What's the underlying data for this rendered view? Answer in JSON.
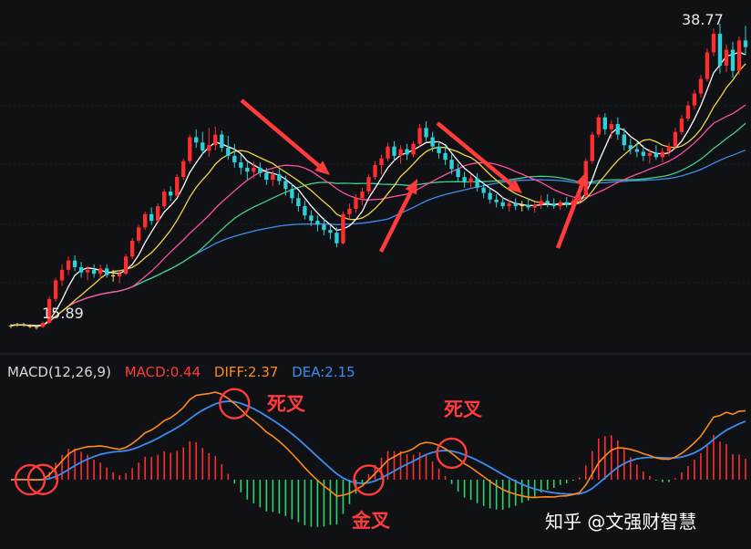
{
  "chart_data": {
    "type": "candlestick+macd",
    "price_high_label": "38.77",
    "price_low_label": "15.89",
    "candles": [
      [
        16.0,
        16.1,
        15.8,
        16.0
      ],
      [
        16.0,
        16.2,
        15.9,
        16.1
      ],
      [
        16.1,
        16.2,
        15.9,
        16.0
      ],
      [
        16.0,
        16.1,
        15.8,
        15.9
      ],
      [
        15.9,
        16.0,
        15.7,
        15.9
      ],
      [
        15.9,
        16.3,
        15.8,
        16.2
      ],
      [
        16.2,
        18.2,
        16.1,
        18.0
      ],
      [
        18.0,
        19.6,
        17.8,
        19.4
      ],
      [
        19.4,
        20.6,
        19.0,
        20.2
      ],
      [
        20.2,
        21.2,
        19.8,
        20.9
      ],
      [
        20.9,
        21.3,
        20.1,
        20.4
      ],
      [
        20.4,
        20.8,
        19.6,
        20.0
      ],
      [
        20.0,
        20.5,
        19.4,
        20.2
      ],
      [
        20.2,
        20.6,
        19.6,
        19.9
      ],
      [
        19.9,
        20.6,
        19.5,
        20.3
      ],
      [
        20.3,
        20.6,
        19.6,
        19.8
      ],
      [
        19.8,
        20.2,
        19.3,
        19.7
      ],
      [
        19.7,
        20.1,
        19.2,
        19.9
      ],
      [
        19.9,
        21.4,
        19.8,
        21.2
      ],
      [
        21.2,
        22.6,
        21.0,
        22.4
      ],
      [
        22.4,
        23.6,
        22.2,
        23.4
      ],
      [
        23.4,
        24.6,
        23.2,
        24.4
      ],
      [
        24.4,
        24.9,
        23.6,
        23.9
      ],
      [
        23.9,
        25.2,
        23.8,
        25.0
      ],
      [
        25.0,
        26.3,
        24.8,
        26.1
      ],
      [
        26.1,
        26.5,
        25.4,
        25.8
      ],
      [
        25.8,
        27.4,
        25.7,
        27.2
      ],
      [
        27.2,
        28.6,
        27.0,
        28.4
      ],
      [
        28.4,
        30.4,
        28.2,
        30.2
      ],
      [
        30.2,
        30.8,
        29.4,
        29.8
      ],
      [
        29.8,
        30.6,
        28.9,
        29.2
      ],
      [
        29.2,
        30.9,
        28.7,
        29.6
      ],
      [
        29.6,
        31.0,
        29.2,
        30.4
      ],
      [
        30.4,
        30.7,
        29.1,
        29.4
      ],
      [
        29.4,
        30.3,
        28.5,
        28.8
      ],
      [
        28.8,
        29.7,
        27.9,
        28.3
      ],
      [
        28.3,
        28.9,
        27.4,
        27.9
      ],
      [
        27.9,
        28.3,
        27.0,
        27.6
      ],
      [
        27.6,
        28.4,
        27.1,
        27.9
      ],
      [
        27.9,
        28.3,
        27.2,
        27.5
      ],
      [
        27.5,
        27.9,
        26.6,
        27.0
      ],
      [
        27.0,
        27.7,
        26.5,
        27.4
      ],
      [
        27.4,
        27.8,
        26.6,
        26.9
      ],
      [
        26.9,
        27.3,
        25.8,
        26.3
      ],
      [
        26.3,
        26.7,
        25.2,
        25.6
      ],
      [
        25.6,
        26.0,
        24.6,
        25.0
      ],
      [
        25.0,
        25.4,
        24.0,
        24.3
      ],
      [
        24.3,
        24.7,
        23.5,
        23.9
      ],
      [
        23.9,
        24.3,
        23.1,
        23.6
      ],
      [
        23.6,
        24.1,
        22.8,
        23.2
      ],
      [
        23.2,
        23.6,
        22.5,
        23.0
      ],
      [
        23.0,
        23.4,
        21.9,
        22.2
      ],
      [
        22.2,
        24.6,
        22.1,
        24.4
      ],
      [
        24.4,
        25.2,
        24.0,
        24.8
      ],
      [
        24.8,
        25.9,
        24.5,
        25.6
      ],
      [
        25.6,
        26.4,
        25.1,
        26.1
      ],
      [
        26.1,
        27.4,
        25.9,
        27.2
      ],
      [
        27.2,
        28.4,
        27.0,
        28.1
      ],
      [
        28.1,
        28.9,
        27.4,
        28.6
      ],
      [
        28.6,
        29.8,
        28.4,
        29.5
      ],
      [
        29.5,
        29.9,
        28.4,
        28.8
      ],
      [
        28.8,
        29.6,
        28.2,
        29.3
      ],
      [
        29.3,
        29.7,
        28.5,
        28.9
      ],
      [
        28.9,
        29.9,
        28.7,
        29.7
      ],
      [
        29.7,
        31.2,
        29.5,
        30.9
      ],
      [
        30.9,
        31.4,
        29.9,
        30.2
      ],
      [
        30.2,
        30.6,
        29.1,
        29.5
      ],
      [
        29.5,
        29.9,
        28.6,
        29.0
      ],
      [
        29.0,
        29.5,
        28.1,
        28.5
      ],
      [
        28.5,
        28.9,
        27.4,
        27.8
      ],
      [
        27.8,
        28.2,
        26.9,
        27.2
      ],
      [
        27.2,
        27.6,
        26.4,
        26.8
      ],
      [
        26.8,
        27.4,
        26.3,
        27.1
      ],
      [
        27.1,
        27.5,
        26.1,
        26.4
      ],
      [
        26.4,
        26.8,
        25.6,
        26.0
      ],
      [
        26.0,
        26.4,
        25.2,
        25.5
      ],
      [
        25.5,
        25.9,
        24.9,
        25.3
      ],
      [
        25.3,
        25.7,
        24.8,
        25.0
      ],
      [
        25.0,
        25.5,
        24.6,
        25.2
      ],
      [
        25.2,
        25.6,
        24.7,
        25.0
      ],
      [
        25.0,
        25.4,
        24.6,
        25.1
      ],
      [
        25.1,
        25.6,
        24.7,
        24.9
      ],
      [
        24.9,
        25.3,
        24.5,
        25.1
      ],
      [
        25.1,
        25.8,
        24.8,
        25.4
      ],
      [
        25.4,
        25.9,
        24.9,
        25.2
      ],
      [
        25.2,
        25.6,
        24.8,
        25.0
      ],
      [
        25.0,
        25.5,
        24.7,
        25.3
      ],
      [
        25.3,
        25.7,
        24.9,
        25.1
      ],
      [
        25.1,
        25.6,
        24.8,
        25.4
      ],
      [
        25.4,
        26.0,
        25.2,
        25.8
      ],
      [
        25.8,
        28.6,
        25.7,
        28.4
      ],
      [
        28.4,
        30.6,
        28.2,
        30.4
      ],
      [
        30.4,
        31.9,
        30.2,
        31.7
      ],
      [
        31.7,
        32.0,
        30.4,
        30.8
      ],
      [
        30.8,
        31.5,
        30.1,
        31.2
      ],
      [
        31.2,
        31.7,
        30.0,
        30.4
      ],
      [
        30.4,
        30.9,
        29.2,
        29.6
      ],
      [
        29.6,
        30.1,
        28.9,
        29.3
      ],
      [
        29.3,
        29.8,
        28.7,
        29.1
      ],
      [
        29.1,
        29.6,
        28.4,
        28.8
      ],
      [
        28.8,
        29.3,
        28.2,
        29.0
      ],
      [
        29.0,
        29.6,
        28.5,
        28.7
      ],
      [
        28.7,
        29.4,
        28.3,
        29.1
      ],
      [
        29.1,
        29.8,
        28.8,
        29.5
      ],
      [
        29.5,
        30.9,
        29.3,
        30.6
      ],
      [
        30.6,
        31.9,
        30.4,
        31.6
      ],
      [
        31.6,
        32.9,
        31.4,
        32.6
      ],
      [
        32.6,
        33.8,
        32.3,
        33.5
      ],
      [
        33.5,
        34.9,
        33.2,
        34.6
      ],
      [
        34.6,
        36.9,
        34.4,
        36.6
      ],
      [
        36.6,
        38.4,
        36.3,
        38.0
      ],
      [
        38.0,
        38.77,
        35.0,
        35.6
      ],
      [
        35.6,
        37.2,
        35.1,
        36.8
      ],
      [
        36.8,
        37.4,
        34.7,
        35.2
      ],
      [
        35.2,
        37.8,
        34.9,
        37.5
      ],
      [
        37.5,
        38.6,
        36.4,
        37.0
      ]
    ],
    "ma_periods": [
      5,
      10,
      20,
      30,
      60
    ],
    "ma_colors": [
      "#ffffff",
      "#f2d648",
      "#ff4fa1",
      "#41d18a",
      "#3d8cf0"
    ],
    "macd": {
      "label": "MACD(12,26,9)",
      "macd_label": "MACD:0.44",
      "diff_label": "DIFF:2.37",
      "dea_label": "DEA:2.15",
      "params": [
        12,
        26,
        9
      ]
    },
    "annotations": [
      {
        "text": "死叉",
        "type": "dead-cross"
      },
      {
        "text": "金叉",
        "type": "golden-cross"
      },
      {
        "text": "死叉",
        "type": "dead-cross"
      }
    ],
    "colors": {
      "up": "#ff2d2d",
      "down": "#2fd0d8",
      "doji": "#f2d648",
      "diff": "#ff8a1c",
      "dea": "#3d8cf0",
      "hist_up": "#ff2d2d",
      "hist_down": "#2fd466",
      "annotation": "#ff3b3b",
      "grid": "#1e2028"
    }
  },
  "watermark": "知乎 @文强财智慧"
}
